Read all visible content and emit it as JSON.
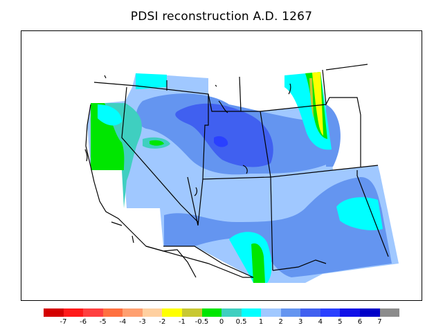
{
  "title": "PDSI reconstruction A.D. 1267",
  "palette": {
    "severe_dry": "#d40000",
    "dry": "#ff5a3a",
    "moderate_dry": "#ffa070",
    "neutral_dry": "#ffd8a0",
    "yellow": "#ffff00",
    "olive": "#c8c832",
    "green": "#00e600",
    "teal": "#3fcfc0",
    "cyan": "#00ffff",
    "light_blue": "#a0c8ff",
    "mid_blue": "#6495f0",
    "blue": "#4060f0",
    "bright_blue": "#2040ff",
    "deep_blue": "#0000e0",
    "gray": "#8c8c8c"
  },
  "legend": {
    "colors": [
      "#d40000",
      "#ff1a1a",
      "#ff4040",
      "#ff7040",
      "#ffa070",
      "#ffd0a0",
      "#ffff00",
      "#c8c832",
      "#00e600",
      "#3fcfc0",
      "#00ffff",
      "#a0c8ff",
      "#6495f0",
      "#4060f0",
      "#2a40ff",
      "#1010e8",
      "#0000c8",
      "#8c8c8c"
    ],
    "labels": [
      "-7",
      "-6",
      "-5",
      "-4",
      "-3",
      "-2",
      "-1",
      "-0.5",
      "0",
      "0.5",
      "1",
      "2",
      "3",
      "4",
      "5",
      "6",
      "7"
    ]
  }
}
